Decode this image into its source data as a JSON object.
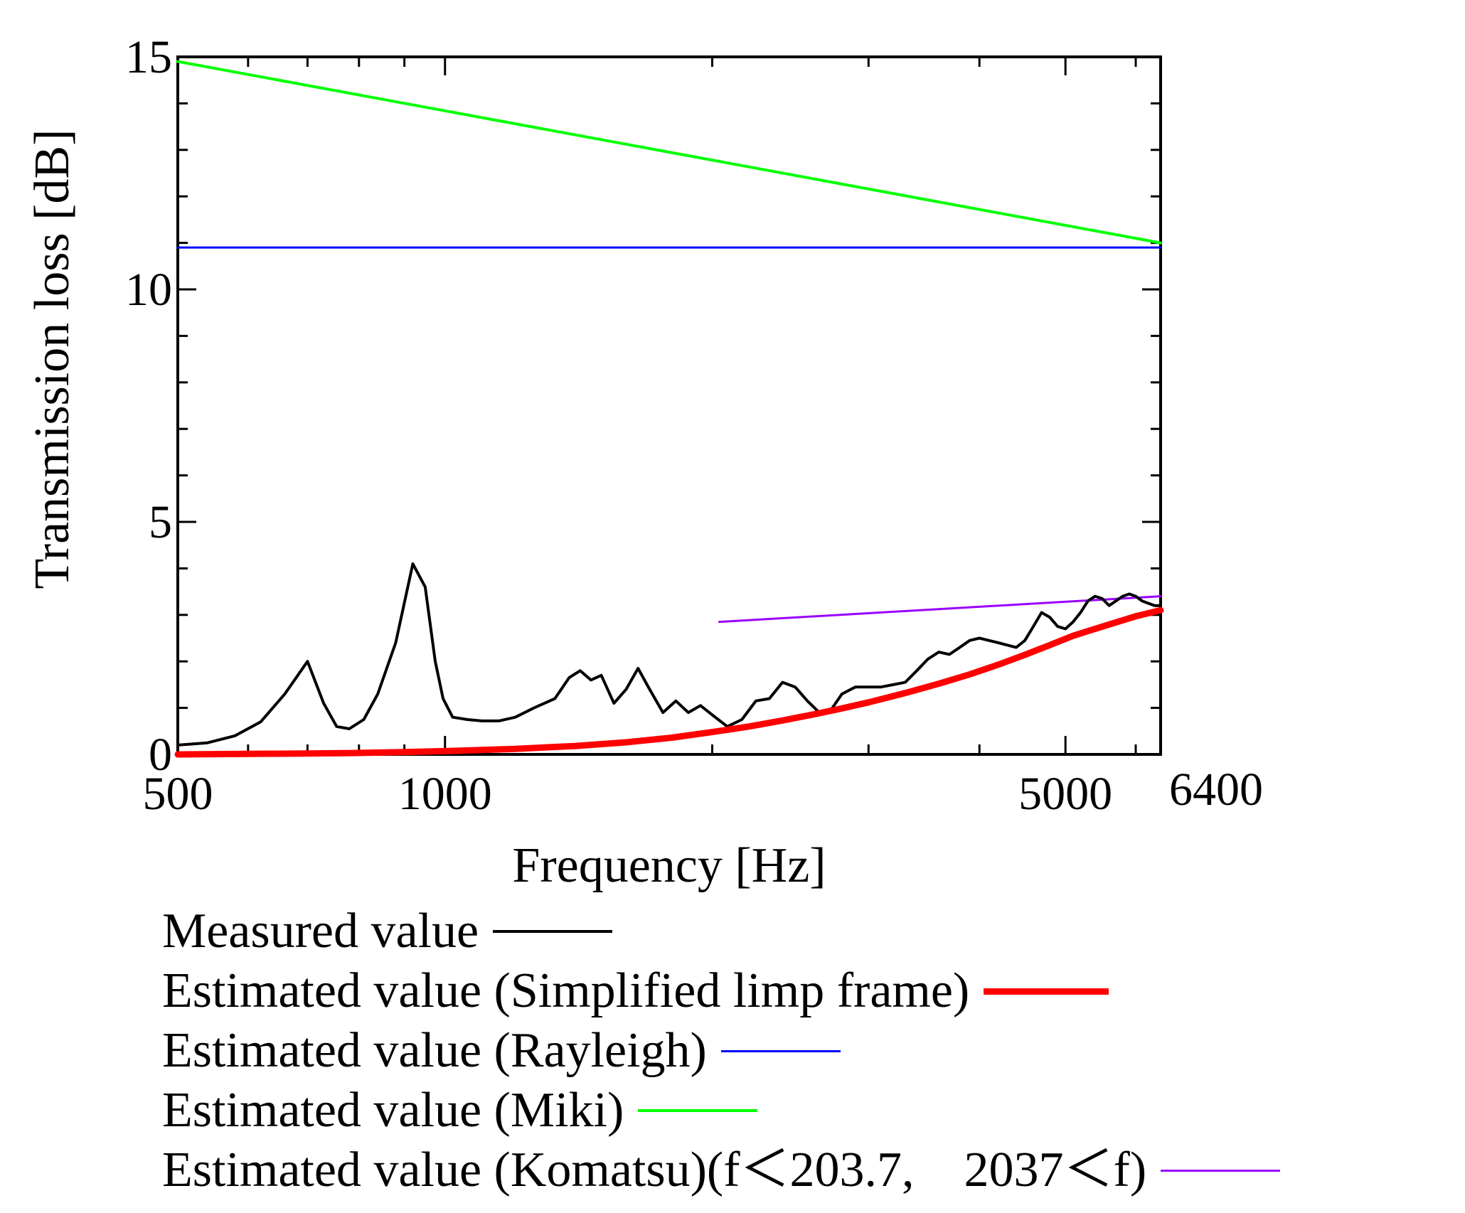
{
  "chart_data": {
    "type": "line",
    "xscale": "log",
    "xlim": [
      500,
      6400
    ],
    "ylim": [
      0,
      15
    ],
    "xlabel": "Frequency [Hz]",
    "ylabel": "Transmission loss [dB]",
    "xticks": [
      {
        "value": 500,
        "label": "500"
      },
      {
        "value": 1000,
        "label": "1000"
      },
      {
        "value": 5000,
        "label": "5000"
      },
      {
        "value": 6400,
        "label": "6400"
      }
    ],
    "yticks": [
      {
        "value": 0,
        "label": "0"
      },
      {
        "value": 5,
        "label": "5"
      },
      {
        "value": 10,
        "label": "10"
      },
      {
        "value": 15,
        "label": "15"
      }
    ],
    "series": [
      {
        "name": "Measured value",
        "color": "#000000",
        "x": [
          500,
          540,
          580,
          620,
          660,
          700,
          730,
          755,
          780,
          810,
          840,
          880,
          920,
          950,
          975,
          995,
          1020,
          1060,
          1100,
          1150,
          1200,
          1260,
          1330,
          1380,
          1420,
          1460,
          1500,
          1550,
          1600,
          1650,
          1700,
          1760,
          1820,
          1880,
          1940,
          2000,
          2080,
          2160,
          2240,
          2320,
          2400,
          2480,
          2560,
          2640,
          2720,
          2800,
          2900,
          3000,
          3100,
          3200,
          3300,
          3400,
          3500,
          3600,
          3700,
          3800,
          3900,
          4000,
          4100,
          4200,
          4300,
          4400,
          4500,
          4600,
          4700,
          4800,
          4900,
          5000,
          5100,
          5200,
          5300,
          5400,
          5500,
          5600,
          5700,
          5800,
          5900,
          6000,
          6100,
          6200,
          6300,
          6400
        ],
        "y": [
          0.2,
          0.25,
          0.4,
          0.7,
          1.3,
          2.0,
          1.1,
          0.6,
          0.55,
          0.75,
          1.3,
          2.4,
          4.1,
          3.6,
          2.0,
          1.2,
          0.8,
          0.75,
          0.72,
          0.72,
          0.8,
          1.0,
          1.2,
          1.65,
          1.8,
          1.6,
          1.7,
          1.1,
          1.4,
          1.85,
          1.4,
          0.9,
          1.15,
          0.9,
          1.05,
          0.85,
          0.6,
          0.75,
          1.15,
          1.2,
          1.55,
          1.45,
          1.15,
          0.9,
          0.95,
          1.3,
          1.45,
          1.45,
          1.45,
          1.5,
          1.55,
          1.8,
          2.05,
          2.2,
          2.15,
          2.3,
          2.45,
          2.5,
          2.45,
          2.4,
          2.35,
          2.3,
          2.45,
          2.75,
          3.05,
          2.95,
          2.75,
          2.7,
          2.85,
          3.05,
          3.3,
          3.4,
          3.35,
          3.2,
          3.3,
          3.4,
          3.45,
          3.4,
          3.3,
          3.25,
          3.2,
          3.2
        ]
      },
      {
        "name": "Estimated value (Simplified limp frame)",
        "color": "#ff0000",
        "x": [
          500,
          600,
          700,
          800,
          900,
          1000,
          1200,
          1400,
          1600,
          1800,
          2000,
          2200,
          2400,
          2600,
          2800,
          3000,
          3300,
          3600,
          3900,
          4200,
          4500,
          4800,
          5100,
          5400,
          5700,
          6000,
          6400
        ],
        "y": [
          0.0,
          0.01,
          0.02,
          0.03,
          0.05,
          0.07,
          0.12,
          0.18,
          0.26,
          0.36,
          0.48,
          0.6,
          0.73,
          0.86,
          0.99,
          1.12,
          1.32,
          1.52,
          1.72,
          1.93,
          2.14,
          2.35,
          2.55,
          2.7,
          2.84,
          2.97,
          3.1
        ]
      },
      {
        "name": "Estimated value (Rayleigh)",
        "color": "#0000ff",
        "x": [
          500,
          6400
        ],
        "y": [
          10.9,
          10.9
        ]
      },
      {
        "name": "Estimated value (Miki)",
        "color": "#00ff00",
        "x": [
          500,
          6400
        ],
        "y": [
          14.9,
          11.0
        ]
      },
      {
        "name": "Estimated value (Komatsu)(f＜203.7,　2037＜f)",
        "color": "#9900ff",
        "x": [
          2037,
          6400
        ],
        "y": [
          2.85,
          3.4
        ]
      }
    ]
  }
}
